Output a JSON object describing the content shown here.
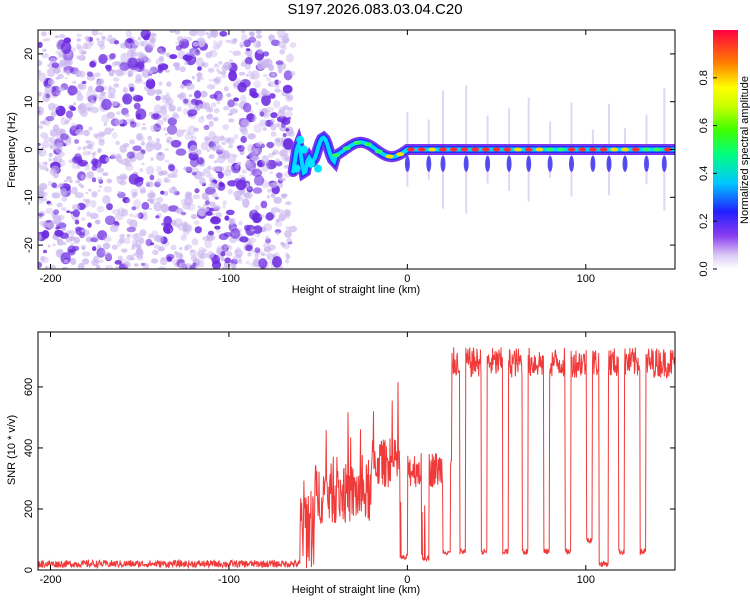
{
  "title": "S197.2026.083.03.04.C20",
  "colors": {
    "snr_line": "#f03a3a",
    "scatter_purple": "#6a28e0",
    "scatter_light": "#c9b4ee"
  },
  "chart_data": [
    {
      "type": "heatmap",
      "name": "spectrogram",
      "xlabel": "Height of straight line (km)",
      "ylabel": "Frequency (Hz)",
      "xlim": [
        -207,
        150
      ],
      "ylim": [
        -25,
        25
      ],
      "x_ticks": [
        -200,
        -100,
        0,
        100
      ],
      "x_tick_labels": [
        "-200",
        "-100",
        "0",
        "100"
      ],
      "y_ticks": [
        20,
        10,
        0,
        -10,
        -20
      ],
      "y_tick_labels": [
        "20",
        "10",
        "0",
        "-10",
        "-20"
      ],
      "noise_region_x": [
        -207,
        -64
      ],
      "signal_region_x": [
        -64,
        150
      ],
      "signal_frequency_hz": 0,
      "colorbar": {
        "label": "Normalized spectral amplitude",
        "range": [
          0.0,
          1.0
        ],
        "ticks": [
          0.0,
          0.2,
          0.4,
          0.6,
          0.8
        ],
        "tick_labels": [
          "0.0",
          "0.2",
          "0.4",
          "0.6",
          "0.8"
        ],
        "colormap": "rainbow"
      }
    },
    {
      "type": "line",
      "name": "snr",
      "xlabel": "Height of straight line (km)",
      "ylabel": "SNR (10 * v/v)",
      "xlim": [
        -207,
        150
      ],
      "ylim": [
        0,
        780
      ],
      "x_ticks": [
        -200,
        -100,
        0,
        100
      ],
      "x_tick_labels": [
        "-200",
        "-100",
        "0",
        "100"
      ],
      "y_ticks": [
        0,
        200,
        400,
        600
      ],
      "y_tick_labels": [
        "0",
        "200",
        "400",
        "600"
      ],
      "segments": [
        {
          "x_start": -207,
          "x_end": -60,
          "level": 20,
          "noise": 12
        },
        {
          "x_start": -60,
          "x_end": -52,
          "level": 150,
          "noise": 150
        },
        {
          "x_start": -52,
          "x_end": -20,
          "level": 250,
          "noise": 100
        },
        {
          "x_start": -20,
          "x_end": 0,
          "level": 350,
          "noise": 80
        },
        {
          "x_start": 0,
          "x_end": 25,
          "level": 330,
          "noise": 60
        },
        {
          "x_start": 25,
          "x_end": 150,
          "level": 680,
          "noise": 50
        }
      ],
      "dropouts": [
        {
          "x": -2,
          "width": 4,
          "level": 40
        },
        {
          "x": 10,
          "width": 4,
          "level": 40
        },
        {
          "x": 22,
          "width": 4,
          "level": 60
        },
        {
          "x": 31,
          "width": 3,
          "level": 60
        },
        {
          "x": 43,
          "width": 3,
          "level": 60
        },
        {
          "x": 55,
          "width": 3,
          "level": 60
        },
        {
          "x": 66,
          "width": 3,
          "level": 60
        },
        {
          "x": 78,
          "width": 3,
          "level": 60
        },
        {
          "x": 90,
          "width": 3,
          "level": 60
        },
        {
          "x": 102,
          "width": 3,
          "level": 100
        },
        {
          "x": 110,
          "width": 5,
          "level": 20
        },
        {
          "x": 120,
          "width": 3,
          "level": 60
        },
        {
          "x": 132,
          "width": 3,
          "level": 60
        }
      ]
    }
  ]
}
